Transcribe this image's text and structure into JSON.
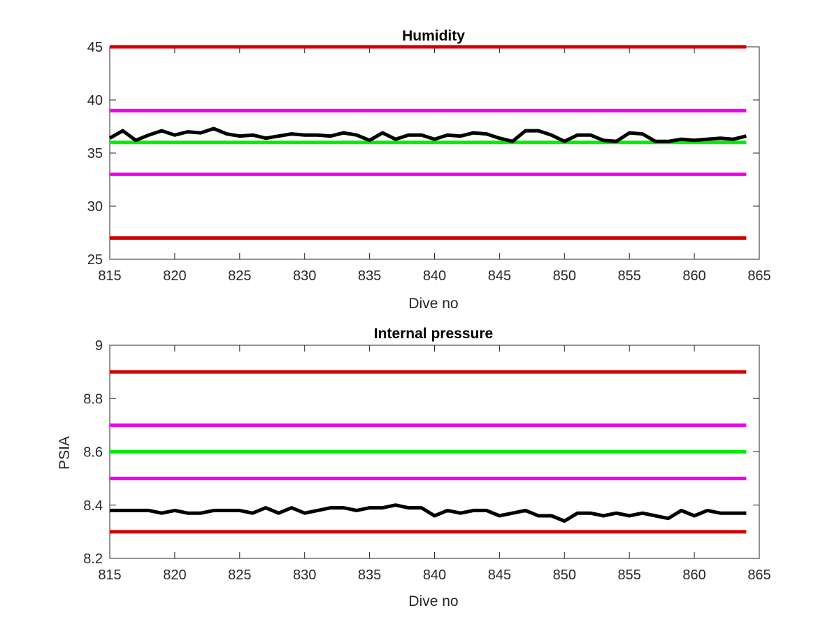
{
  "chart_data": [
    {
      "type": "line",
      "title": "Humidity",
      "xlabel": "Dive no",
      "ylabel": "",
      "xlim": [
        815,
        865
      ],
      "ylim": [
        25,
        45
      ],
      "xticks": [
        815,
        820,
        825,
        830,
        835,
        840,
        845,
        850,
        855,
        860,
        865
      ],
      "yticks": [
        25,
        30,
        35,
        40,
        45
      ],
      "grid": false,
      "x": [
        815,
        816,
        817,
        818,
        819,
        820,
        821,
        822,
        823,
        824,
        825,
        826,
        827,
        828,
        829,
        830,
        831,
        832,
        833,
        834,
        835,
        836,
        837,
        838,
        839,
        840,
        841,
        842,
        843,
        844,
        845,
        846,
        847,
        848,
        849,
        850,
        851,
        852,
        853,
        854,
        855,
        856,
        857,
        858,
        859,
        860,
        861,
        862,
        863,
        864
      ],
      "series": [
        {
          "color": "#000000",
          "values": [
            36.4,
            37.1,
            36.2,
            36.7,
            37.1,
            36.7,
            37.0,
            36.9,
            37.3,
            36.8,
            36.6,
            36.7,
            36.4,
            36.6,
            36.8,
            36.7,
            36.7,
            36.6,
            36.9,
            36.7,
            36.2,
            36.9,
            36.3,
            36.7,
            36.7,
            36.3,
            36.7,
            36.6,
            36.9,
            36.8,
            36.4,
            36.1,
            37.1,
            37.1,
            36.7,
            36.1,
            36.7,
            36.7,
            36.2,
            36.1,
            36.9,
            36.8,
            36.1,
            36.1,
            36.3,
            36.2,
            36.3,
            36.4,
            36.3,
            36.6
          ]
        }
      ],
      "reference_lines": [
        {
          "value": 45,
          "color": "#d00000"
        },
        {
          "value": 39,
          "color": "#ee00ee"
        },
        {
          "value": 36,
          "color": "#00ee00"
        },
        {
          "value": 33,
          "color": "#ee00ee"
        },
        {
          "value": 27,
          "color": "#d00000"
        }
      ]
    },
    {
      "type": "line",
      "title": "Internal pressure",
      "xlabel": "Dive no",
      "ylabel": "PSIA",
      "xlim": [
        815,
        865
      ],
      "ylim": [
        8.2,
        9
      ],
      "xticks": [
        815,
        820,
        825,
        830,
        835,
        840,
        845,
        850,
        855,
        860,
        865
      ],
      "yticks": [
        "8.2",
        "8.4",
        "8.6",
        "8.8",
        "9"
      ],
      "grid": false,
      "x": [
        815,
        816,
        817,
        818,
        819,
        820,
        821,
        822,
        823,
        824,
        825,
        826,
        827,
        828,
        829,
        830,
        831,
        832,
        833,
        834,
        835,
        836,
        837,
        838,
        839,
        840,
        841,
        842,
        843,
        844,
        845,
        846,
        847,
        848,
        849,
        850,
        851,
        852,
        853,
        854,
        855,
        856,
        857,
        858,
        859,
        860,
        861,
        862,
        863,
        864
      ],
      "series": [
        {
          "color": "#000000",
          "values": [
            8.38,
            8.38,
            8.38,
            8.38,
            8.37,
            8.38,
            8.37,
            8.37,
            8.38,
            8.38,
            8.38,
            8.37,
            8.39,
            8.37,
            8.39,
            8.37,
            8.38,
            8.39,
            8.39,
            8.38,
            8.39,
            8.39,
            8.4,
            8.39,
            8.39,
            8.36,
            8.38,
            8.37,
            8.38,
            8.38,
            8.36,
            8.37,
            8.38,
            8.36,
            8.36,
            8.34,
            8.37,
            8.37,
            8.36,
            8.37,
            8.36,
            8.37,
            8.36,
            8.35,
            8.38,
            8.36,
            8.38,
            8.37,
            8.37,
            8.37
          ]
        }
      ],
      "reference_lines": [
        {
          "value": 8.9,
          "color": "#d00000"
        },
        {
          "value": 8.7,
          "color": "#ee00ee"
        },
        {
          "value": 8.6,
          "color": "#00ee00"
        },
        {
          "value": 8.5,
          "color": "#ee00ee"
        },
        {
          "value": 8.3,
          "color": "#d00000"
        }
      ]
    }
  ]
}
